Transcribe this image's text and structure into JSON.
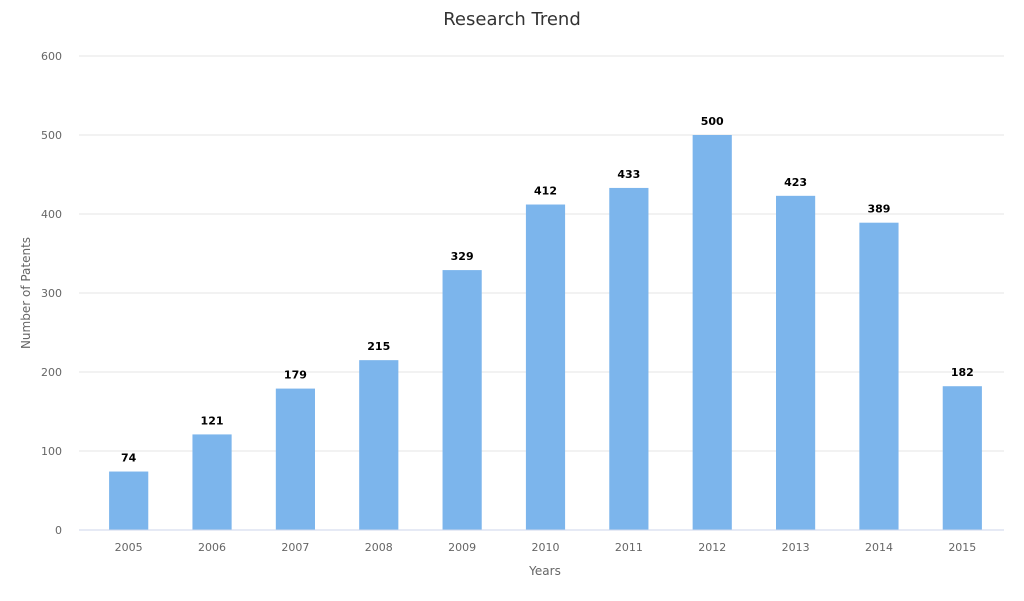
{
  "chart_data": {
    "type": "bar",
    "title": "Research Trend",
    "xlabel": "Years",
    "ylabel": "Number of Patents",
    "categories": [
      "2005",
      "2006",
      "2007",
      "2008",
      "2009",
      "2010",
      "2011",
      "2012",
      "2013",
      "2014",
      "2015"
    ],
    "series": [
      {
        "values": [
          74,
          121,
          179,
          215,
          329,
          412,
          433,
          500,
          423,
          389,
          182
        ]
      }
    ],
    "ylim": [
      0,
      600
    ],
    "yticks": [
      0,
      100,
      200,
      300,
      400,
      500,
      600
    ],
    "grid": true,
    "data_labels": true,
    "bar_color": "#7cb5ec"
  }
}
